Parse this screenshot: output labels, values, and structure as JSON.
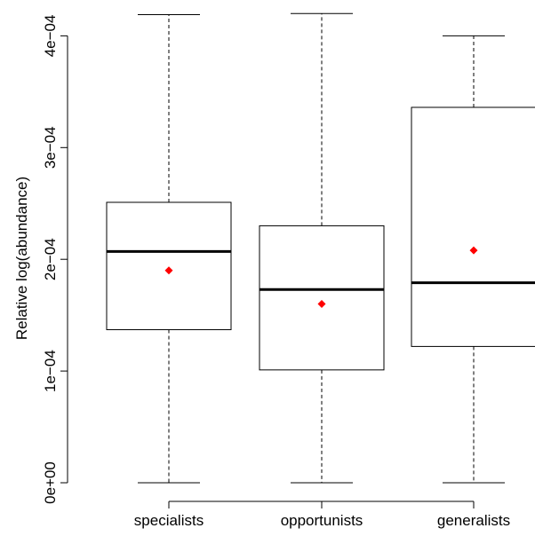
{
  "chart_data": {
    "type": "boxplot",
    "title": "",
    "xlabel": "",
    "ylabel": "Relative log(abundance)",
    "ylim": [
      0,
      0.00042
    ],
    "categories": [
      "specialists",
      "opportunists",
      "generalists"
    ],
    "y_ticks": [
      {
        "value": 0,
        "label": "0e+00"
      },
      {
        "value": 0.0001,
        "label": "1e−04"
      },
      {
        "value": 0.0002,
        "label": "2e−04"
      },
      {
        "value": 0.0003,
        "label": "3e−04"
      },
      {
        "value": 0.0004,
        "label": "4e−04"
      }
    ],
    "boxes": [
      {
        "category": "specialists",
        "whisker_low": 0,
        "q1": 0.000137,
        "median": 0.000207,
        "q3": 0.000251,
        "whisker_high": 0.000419,
        "mean": 0.00019
      },
      {
        "category": "opportunists",
        "whisker_low": 0,
        "q1": 0.000101,
        "median": 0.000173,
        "q3": 0.00023,
        "whisker_high": 0.00042,
        "mean": 0.00016
      },
      {
        "category": "generalists",
        "whisker_low": 0,
        "q1": 0.000122,
        "median": 0.000179,
        "q3": 0.000336,
        "whisker_high": 0.0004,
        "mean": 0.000208
      }
    ],
    "colors": {
      "box": "#000000",
      "mean_marker": "#ff0000",
      "background": "#ffffff"
    }
  }
}
